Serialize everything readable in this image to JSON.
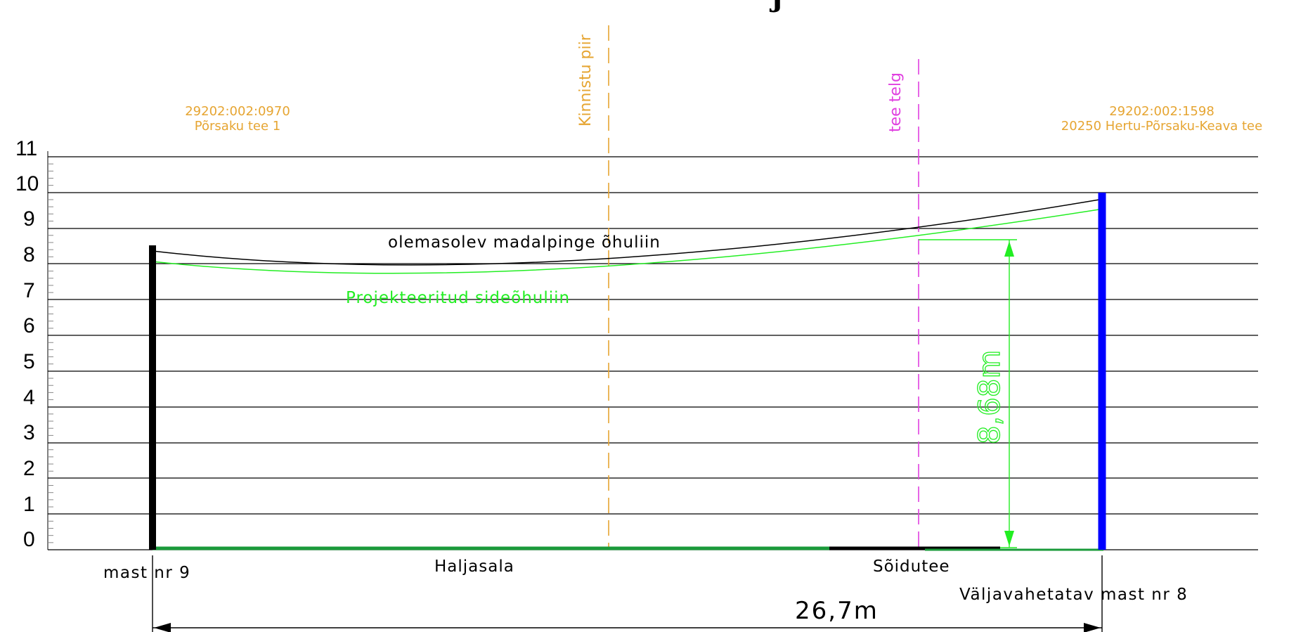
{
  "y_axis_labels": [
    "11",
    "10",
    "9",
    "8",
    "7",
    "6",
    "5",
    "4",
    "3",
    "2",
    "1",
    "0"
  ],
  "parcels": {
    "left": {
      "id": "29202:002:0970",
      "name": "Põrsaku tee 1"
    },
    "right": {
      "id": "29202:002:1598",
      "name": "20250 Hertu-Põrsaku-Keava tee"
    }
  },
  "reference_lines": {
    "property_boundary": "Kinnistu piir",
    "road_axis": "tee telg"
  },
  "lines": {
    "existing": "olemasolev madalpinge õhuliin",
    "projected": "Projekteeritud sideõhuliin"
  },
  "clearance_label": "8,68m",
  "ground": {
    "grass": "Haljasala",
    "road": "Sõidutee"
  },
  "masts": {
    "left": "mast nr 9",
    "right": "Väljavahetatav mast nr 8"
  },
  "span_label": "26,7m",
  "colors": {
    "parcel_text": "#e6a532",
    "road_axis": "#e040e0",
    "projected_line": "#22ee22",
    "new_mast": "#0000ff",
    "ground_grass": "#1a9a3a"
  }
}
